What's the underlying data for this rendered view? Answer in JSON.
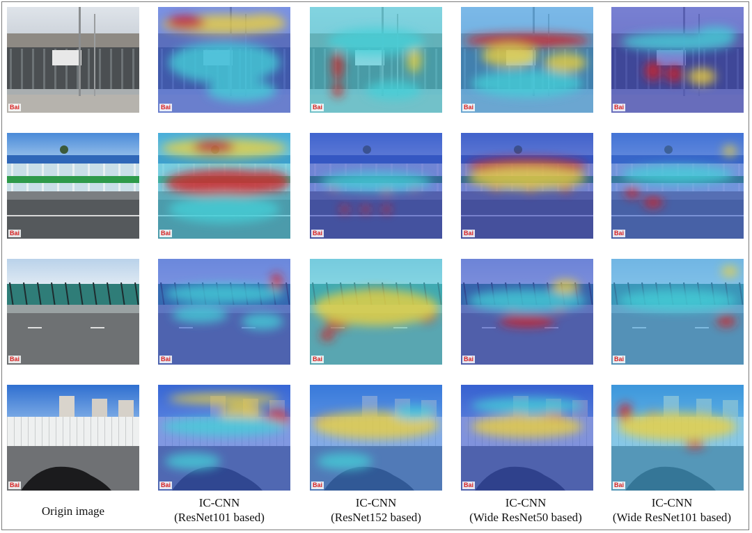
{
  "columns": [
    {
      "id": "origin",
      "line1": "Origin image",
      "line2": ""
    },
    {
      "id": "r101",
      "line1": "IC-CNN",
      "line2": "(ResNet101 based)"
    },
    {
      "id": "r152",
      "line1": "IC-CNN",
      "line2": "(ResNet152 based)"
    },
    {
      "id": "w50",
      "line1": "IC-CNN",
      "line2": "(Wide ResNet50 based)"
    },
    {
      "id": "w101",
      "line1": "IC-CNN",
      "line2": "(Wide ResNet101 based)"
    }
  ],
  "watermark": "Bai",
  "rows": [
    {
      "id": "row1",
      "scene": "noise barrier by roadside with poles"
    },
    {
      "id": "row2",
      "scene": "elevated highway sound barrier"
    },
    {
      "id": "row3",
      "scene": "curved glass noise barrier"
    },
    {
      "id": "row4",
      "scene": "white noise barrier with buildings"
    }
  ],
  "colors": {
    "heat_low": "#3a3fc8",
    "heat_mid": "#45d0d8",
    "heat_high_yellow": "#f0d23a",
    "heat_peak": "#d81e1e"
  }
}
